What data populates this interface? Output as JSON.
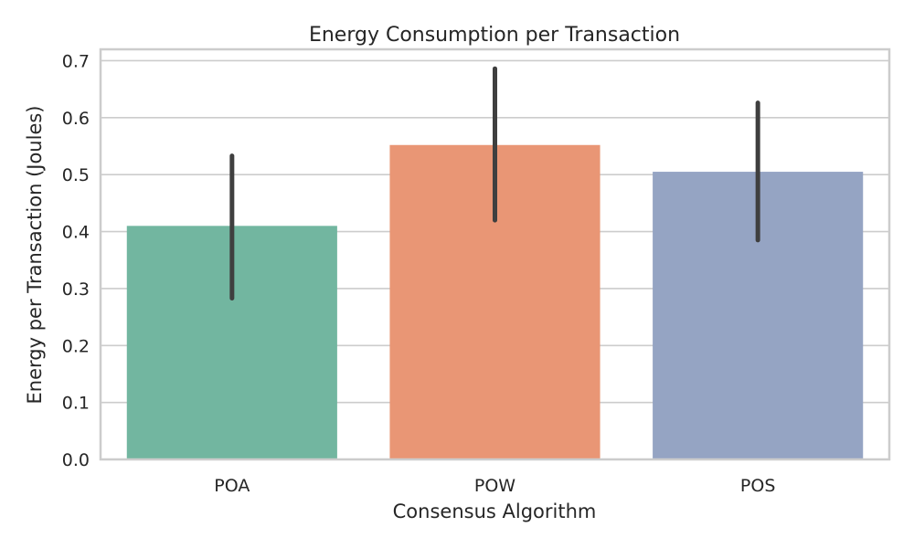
{
  "chart_data": {
    "type": "bar",
    "title": "Energy Consumption per Transaction",
    "xlabel": "Consensus Algorithm",
    "ylabel": "Energy per Transaction (Joules)",
    "categories": [
      "POA",
      "POW",
      "POS"
    ],
    "values": [
      0.41,
      0.552,
      0.505
    ],
    "error_low": [
      0.283,
      0.42,
      0.385
    ],
    "error_high": [
      0.533,
      0.686,
      0.626
    ],
    "ylim": [
      0,
      0.72
    ],
    "yticks": [
      0.0,
      0.1,
      0.2,
      0.3,
      0.4,
      0.5,
      0.6,
      0.7
    ],
    "ytick_labels": [
      "0.0",
      "0.1",
      "0.2",
      "0.3",
      "0.4",
      "0.5",
      "0.6",
      "0.7"
    ],
    "colors": [
      "#72b6a0",
      "#e99675",
      "#95a4c3"
    ],
    "error_color": "#3f3f3f",
    "grid": true,
    "grid_axis": "y"
  }
}
